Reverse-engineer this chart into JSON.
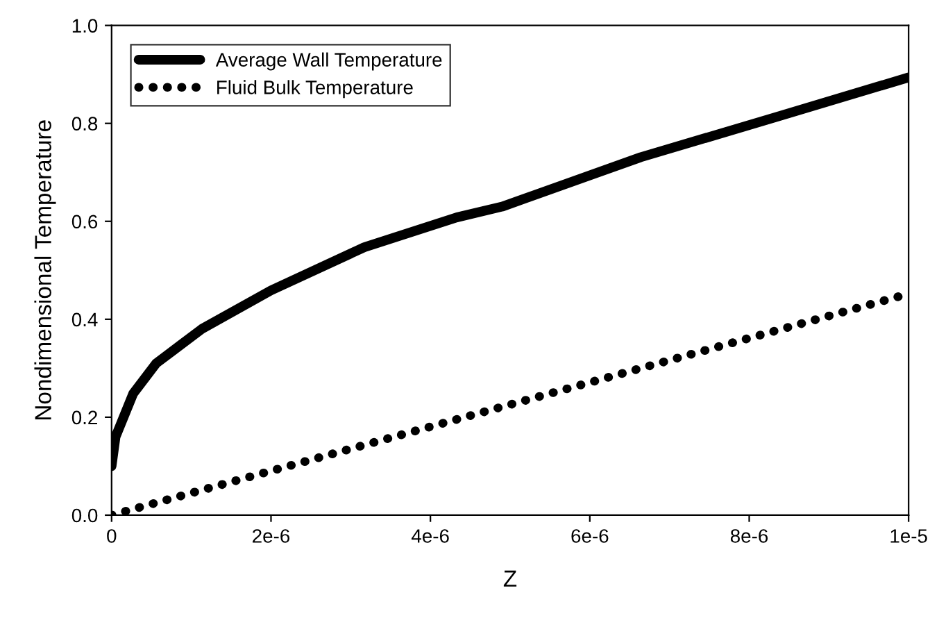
{
  "chart_data": {
    "type": "line",
    "xlabel": "Z",
    "ylabel": "Nondimensional Temperature",
    "xlim": [
      0,
      1e-05
    ],
    "ylim": [
      0,
      1.0
    ],
    "xticks": [
      0,
      {
        "value": 2e-06,
        "label": "2e-6"
      },
      {
        "value": 4e-06,
        "label": "4e-6"
      },
      {
        "value": 6e-06,
        "label": "6e-6"
      },
      {
        "value": 8e-06,
        "label": "8e-6"
      },
      {
        "value": 1e-05,
        "label": "1e-5"
      }
    ],
    "yticks": [
      {
        "value": 0,
        "label": "0.0"
      },
      {
        "value": 0.2,
        "label": "0.2"
      },
      {
        "value": 0.4,
        "label": "0.4"
      },
      {
        "value": 0.6,
        "label": "0.6"
      },
      {
        "value": 0.8,
        "label": "0.8"
      },
      {
        "value": 1.0,
        "label": "1.0"
      }
    ],
    "legend": "top left",
    "grid": false,
    "series": [
      {
        "name": "Average Wall Temperature",
        "color": "#000000",
        "line_style": "solid",
        "x": [
          0,
          5e-08,
          2.7e-07,
          5.6e-07,
          1.13e-06,
          2e-06,
          3.17e-06,
          4.33e-06,
          4.9e-06,
          6.64e-06,
          8.38e-06,
          1e-05
        ],
        "values": [
          0.1,
          0.16,
          0.248,
          0.31,
          0.38,
          0.459,
          0.547,
          0.608,
          0.63,
          0.731,
          0.815,
          0.894
        ]
      },
      {
        "name": "Fluid Bulk Temperature",
        "color": "#000000",
        "line_style": "dotted",
        "x": [
          0,
          5.25e-06,
          1e-05
        ],
        "values": [
          0,
          0.237,
          0.452
        ]
      }
    ]
  }
}
